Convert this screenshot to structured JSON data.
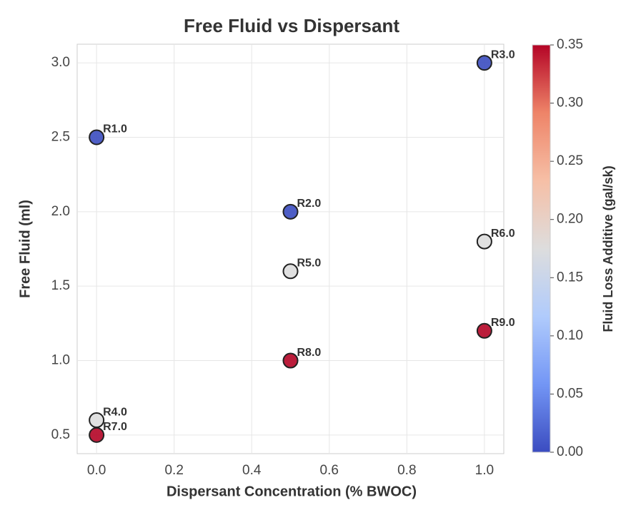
{
  "chart_data": {
    "type": "scatter",
    "title": "Free Fluid vs Dispersant",
    "xlabel": "Dispersant Concentration (% BWOC)",
    "ylabel": "Free Fluid (ml)",
    "colorbar_label": "Fluid Loss Additive (gal/sk)",
    "x": [
      0.0,
      0.5,
      1.0,
      0.0,
      0.5,
      1.0,
      0.0,
      0.5,
      1.0
    ],
    "y": [
      2.5,
      2.0,
      3.0,
      0.6,
      1.6,
      1.8,
      0.5,
      1.0,
      1.2
    ],
    "color_values": [
      0.0,
      0.0,
      0.0,
      0.175,
      0.175,
      0.175,
      0.35,
      0.35,
      0.35
    ],
    "labels": [
      "R1.0",
      "R2.0",
      "R3.0",
      "R4.0",
      "R5.0",
      "R6.0",
      "R7.0",
      "R8.0",
      "R9.0"
    ],
    "colormap": [
      "#3b4cc0",
      "#7396f5",
      "#b0cbfc",
      "#dddddd",
      "#f6bfa6",
      "#ee8468",
      "#b40426"
    ],
    "xlim": [
      -0.05,
      1.05
    ],
    "xticks": [
      {
        "value": 0,
        "label": "0.0"
      },
      0.2,
      0.4,
      0.6,
      0.8,
      {
        "value": 1,
        "label": "1.0"
      }
    ],
    "ylim": [
      0.375,
      3.125
    ],
    "yticks": [
      0.5,
      {
        "value": 1,
        "label": "1.0"
      },
      1.5,
      {
        "value": 2,
        "label": "2.0"
      },
      2.5,
      {
        "value": 3,
        "label": "3.0"
      }
    ],
    "clim": [
      0.0,
      0.35
    ],
    "cticks": [
      {
        "value": 0,
        "label": "0.00"
      },
      {
        "value": 0.05,
        "label": "0.05"
      },
      {
        "value": 0.1,
        "label": "0.10"
      },
      {
        "value": 0.15,
        "label": "0.15"
      },
      {
        "value": 0.2,
        "label": "0.20"
      },
      {
        "value": 0.25,
        "label": "0.25"
      },
      {
        "value": 0.3,
        "label": "0.30"
      },
      {
        "value": 0.35,
        "label": "0.35"
      }
    ],
    "grid": true
  }
}
